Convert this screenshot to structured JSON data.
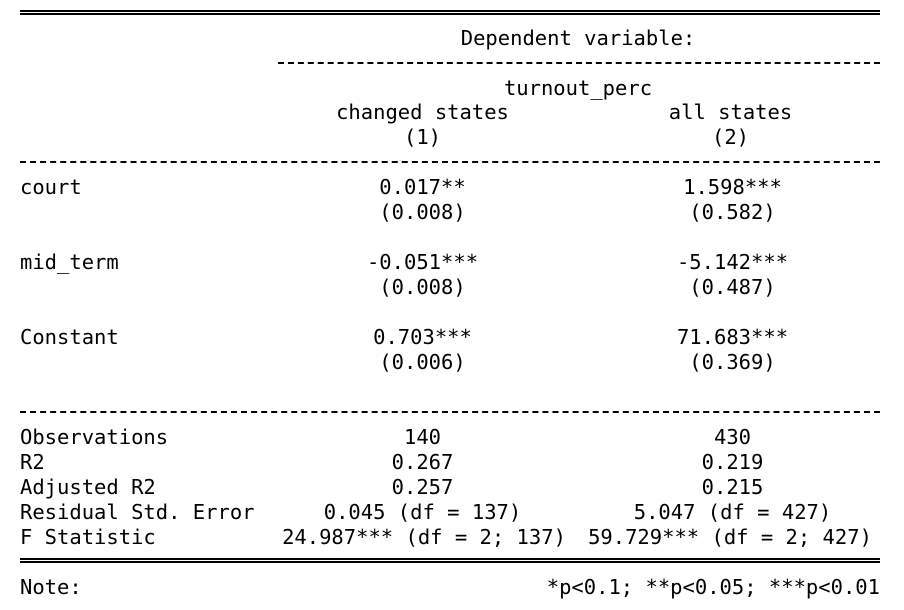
{
  "header": {
    "dep_var_label": "Dependent variable:",
    "dep_var_name": "turnout_perc",
    "col1_name": "changed states",
    "col2_name": "all states",
    "col1_num": "(1)",
    "col2_num": "(2)"
  },
  "rows": {
    "court": {
      "label": "court",
      "c1": "0.017**",
      "c1_se": "(0.008)",
      "c2": "1.598***",
      "c2_se": "(0.582)"
    },
    "mid_term": {
      "label": "mid_term",
      "c1": "-0.051***",
      "c1_se": "(0.008)",
      "c2": "-5.142***",
      "c2_se": "(0.487)"
    },
    "constant": {
      "label": "Constant",
      "c1": "0.703***",
      "c1_se": "(0.006)",
      "c2": "71.683***",
      "c2_se": "(0.369)"
    }
  },
  "stats": {
    "observations": {
      "label": "Observations",
      "c1": "140",
      "c2": "430"
    },
    "r2": {
      "label": "R2",
      "c1": "0.267",
      "c2": "0.219"
    },
    "adj_r2": {
      "label": "Adjusted R2",
      "c1": "0.257",
      "c2": "0.215"
    },
    "rse": {
      "label": "Residual Std. Error",
      "c1": "0.045 (df = 137)",
      "c2": "5.047 (df = 427)"
    },
    "fstat": {
      "label": "F Statistic",
      "c1": "24.987*** (df = 2; 137)",
      "c2": "59.729*** (df = 2; 427)"
    }
  },
  "note": {
    "label": "Note:",
    "text": "*p<0.1; **p<0.05; ***p<0.01"
  }
}
